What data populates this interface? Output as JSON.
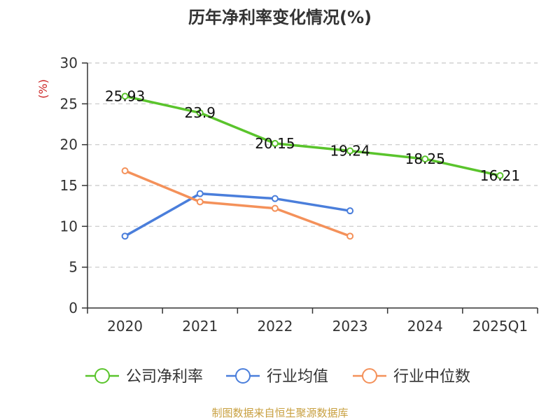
{
  "chart_data": {
    "type": "line",
    "title": "历年净利率变化情况(%)",
    "ylabel": "(%)",
    "ylim": [
      0,
      30
    ],
    "yticks": [
      0,
      5,
      10,
      15,
      20,
      25,
      30
    ],
    "categories": [
      "2020",
      "2021",
      "2022",
      "2023",
      "2024",
      "2025Q1"
    ],
    "grid": true,
    "legend_position": "bottom",
    "series": [
      {
        "name": "公司净利率",
        "color": "#5ac42c",
        "values": [
          25.93,
          23.9,
          20.15,
          19.24,
          18.25,
          16.21
        ],
        "labels": [
          "25.93",
          "23.9",
          "20.15",
          "19.24",
          "18.25",
          "16.21"
        ]
      },
      {
        "name": "行业均值",
        "color": "#4a7edb",
        "values": [
          8.8,
          14.0,
          13.4,
          11.9,
          null,
          null
        ]
      },
      {
        "name": "行业中位数",
        "color": "#f4915a",
        "values": [
          16.8,
          13.0,
          12.2,
          8.8,
          null,
          null
        ]
      }
    ]
  },
  "source": {
    "text": "制图数据来自恒生聚源数据库",
    "color": "#c8a040"
  },
  "colors": {
    "unit_label": "#cc2222",
    "grid": "#c8c8c8",
    "axis": "#333333"
  }
}
